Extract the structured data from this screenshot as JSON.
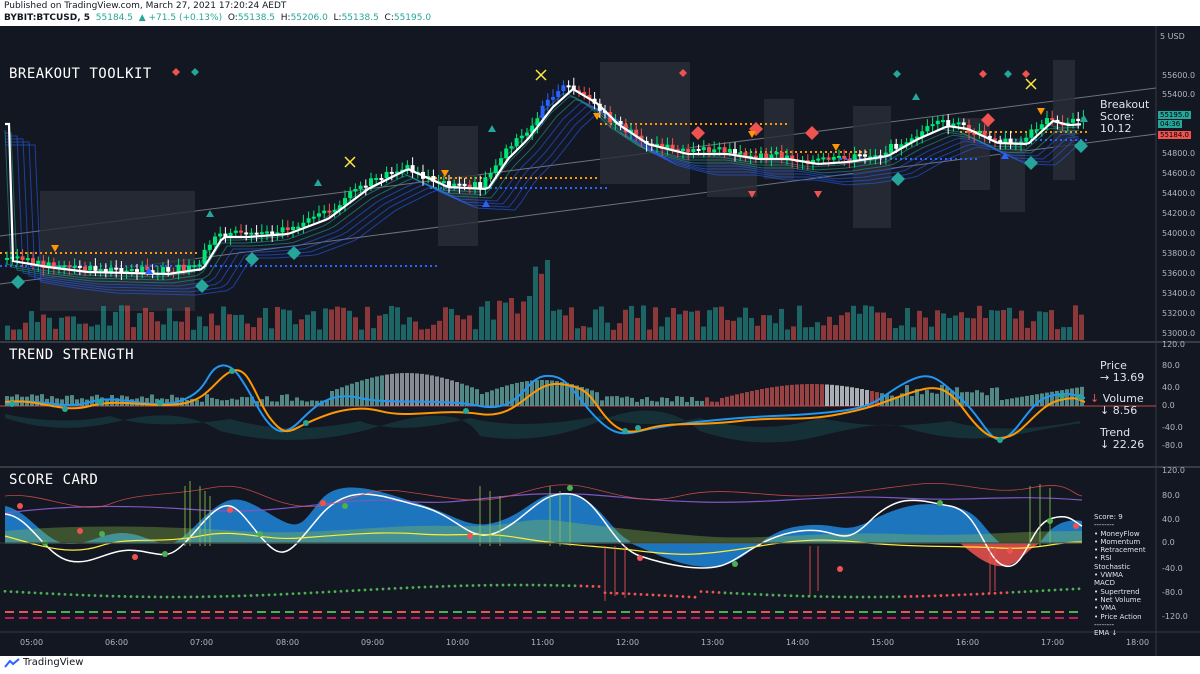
{
  "header": {
    "published": "Published on TradingView.com, March 27, 2021 17:20:24 AEDT",
    "symbol": "BYBIT:BTCUSD, 5",
    "last": "55184.5",
    "change": "▲ +71.5 (+0.13%)",
    "o_label": "O:",
    "o_value": "55138.5",
    "h_label": "H:",
    "h_value": "55206.0",
    "l_label": "L:",
    "l_value": "55138.5",
    "c_label": "C:",
    "c_value": "55195.0"
  },
  "panes": {
    "price_title": "BREAKOUT TOOLKIT",
    "trend_title": "TREND STRENGTH",
    "score_title": "SCORE CARD"
  },
  "breakout": {
    "label1": "Breakout",
    "label2": "Score:",
    "value": "10.12"
  },
  "trend_side": {
    "price_label": "Price",
    "price_value": "→ 13.69",
    "volume_label": "Volume",
    "volume_value": "↓ 8.56",
    "volume_arrow": "↓",
    "trend_label": "Trend",
    "trend_value": "↓ 22.26"
  },
  "score_legend": {
    "title": "Score: 9",
    "sep": "--------",
    "items": [
      "• MoneyFlow",
      "• Momentum",
      "• Retracement",
      "• RSI",
      "Stochastic",
      "• VWMA",
      "MACD",
      "• Supertrend",
      "• Net Volume",
      "• VMA",
      "• Price Action"
    ],
    "sep2": "--------",
    "ema": "EMA ↓"
  },
  "price_axis": {
    "currency": "5 USD",
    "ticks": [
      "55600.0",
      "55400.0",
      "55200.0",
      "54800.0",
      "54600.0",
      "54400.0",
      "54200.0",
      "54000.0",
      "53800.0",
      "53600.0",
      "53400.0",
      "53200.0",
      "53000.0"
    ],
    "tag_green": "55195.0",
    "tag_countdown": "04:36",
    "tag_red": "55184.0"
  },
  "trend_axis": {
    "ticks": [
      "120.0",
      "80.0",
      "40.0",
      "0.0",
      "-40.0",
      "-80.0"
    ]
  },
  "score_axis": {
    "ticks": [
      "120.0",
      "80.0",
      "40.0",
      "0.0",
      "-40.0",
      "-80.0",
      "-120.0"
    ]
  },
  "time_axis": {
    "ticks": [
      "05:00",
      "06:00",
      "07:00",
      "08:00",
      "09:00",
      "10:00",
      "11:00",
      "12:00",
      "13:00",
      "14:00",
      "15:00",
      "16:00",
      "17:00",
      "18:00"
    ]
  },
  "footer": {
    "brand": "TradingView"
  },
  "colors": {
    "background": "#131722",
    "bull": "#26a69a",
    "bear": "#ef5350",
    "candle_green": "#00e676",
    "candle_blue": "#2962ff",
    "ema_white": "#ffffff",
    "accent_orange": "#ff9800",
    "accent_blue": "#2196f3"
  }
}
